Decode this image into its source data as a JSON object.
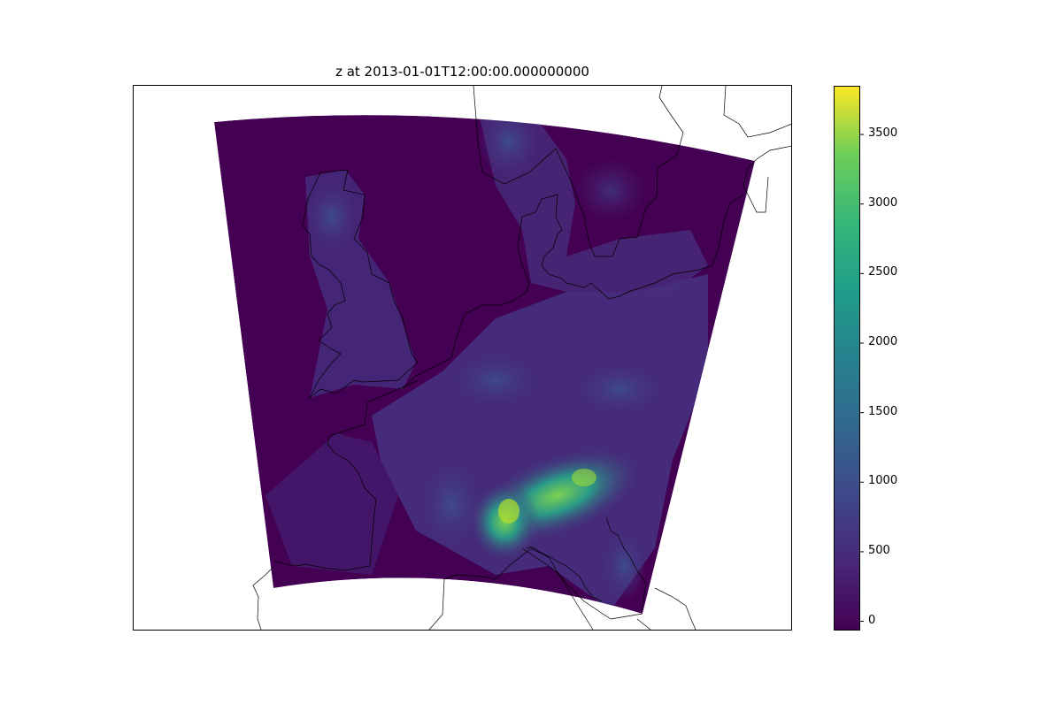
{
  "title": "z at 2013-01-01T12:00:00.000000000",
  "colorbar": {
    "ticks": [
      {
        "value": 0,
        "label": "0"
      },
      {
        "value": 500,
        "label": "500"
      },
      {
        "value": 1000,
        "label": "1000"
      },
      {
        "value": 1500,
        "label": "1500"
      },
      {
        "value": 2000,
        "label": "2000"
      },
      {
        "value": 2500,
        "label": "2500"
      },
      {
        "value": 3000,
        "label": "3000"
      },
      {
        "value": 3500,
        "label": "3500"
      }
    ],
    "min": -60,
    "max": 3850,
    "colormap": "viridis"
  },
  "colors": {
    "low": "#440154",
    "mid": "#21918c",
    "high": "#fde725",
    "coastline": "#000000"
  }
}
